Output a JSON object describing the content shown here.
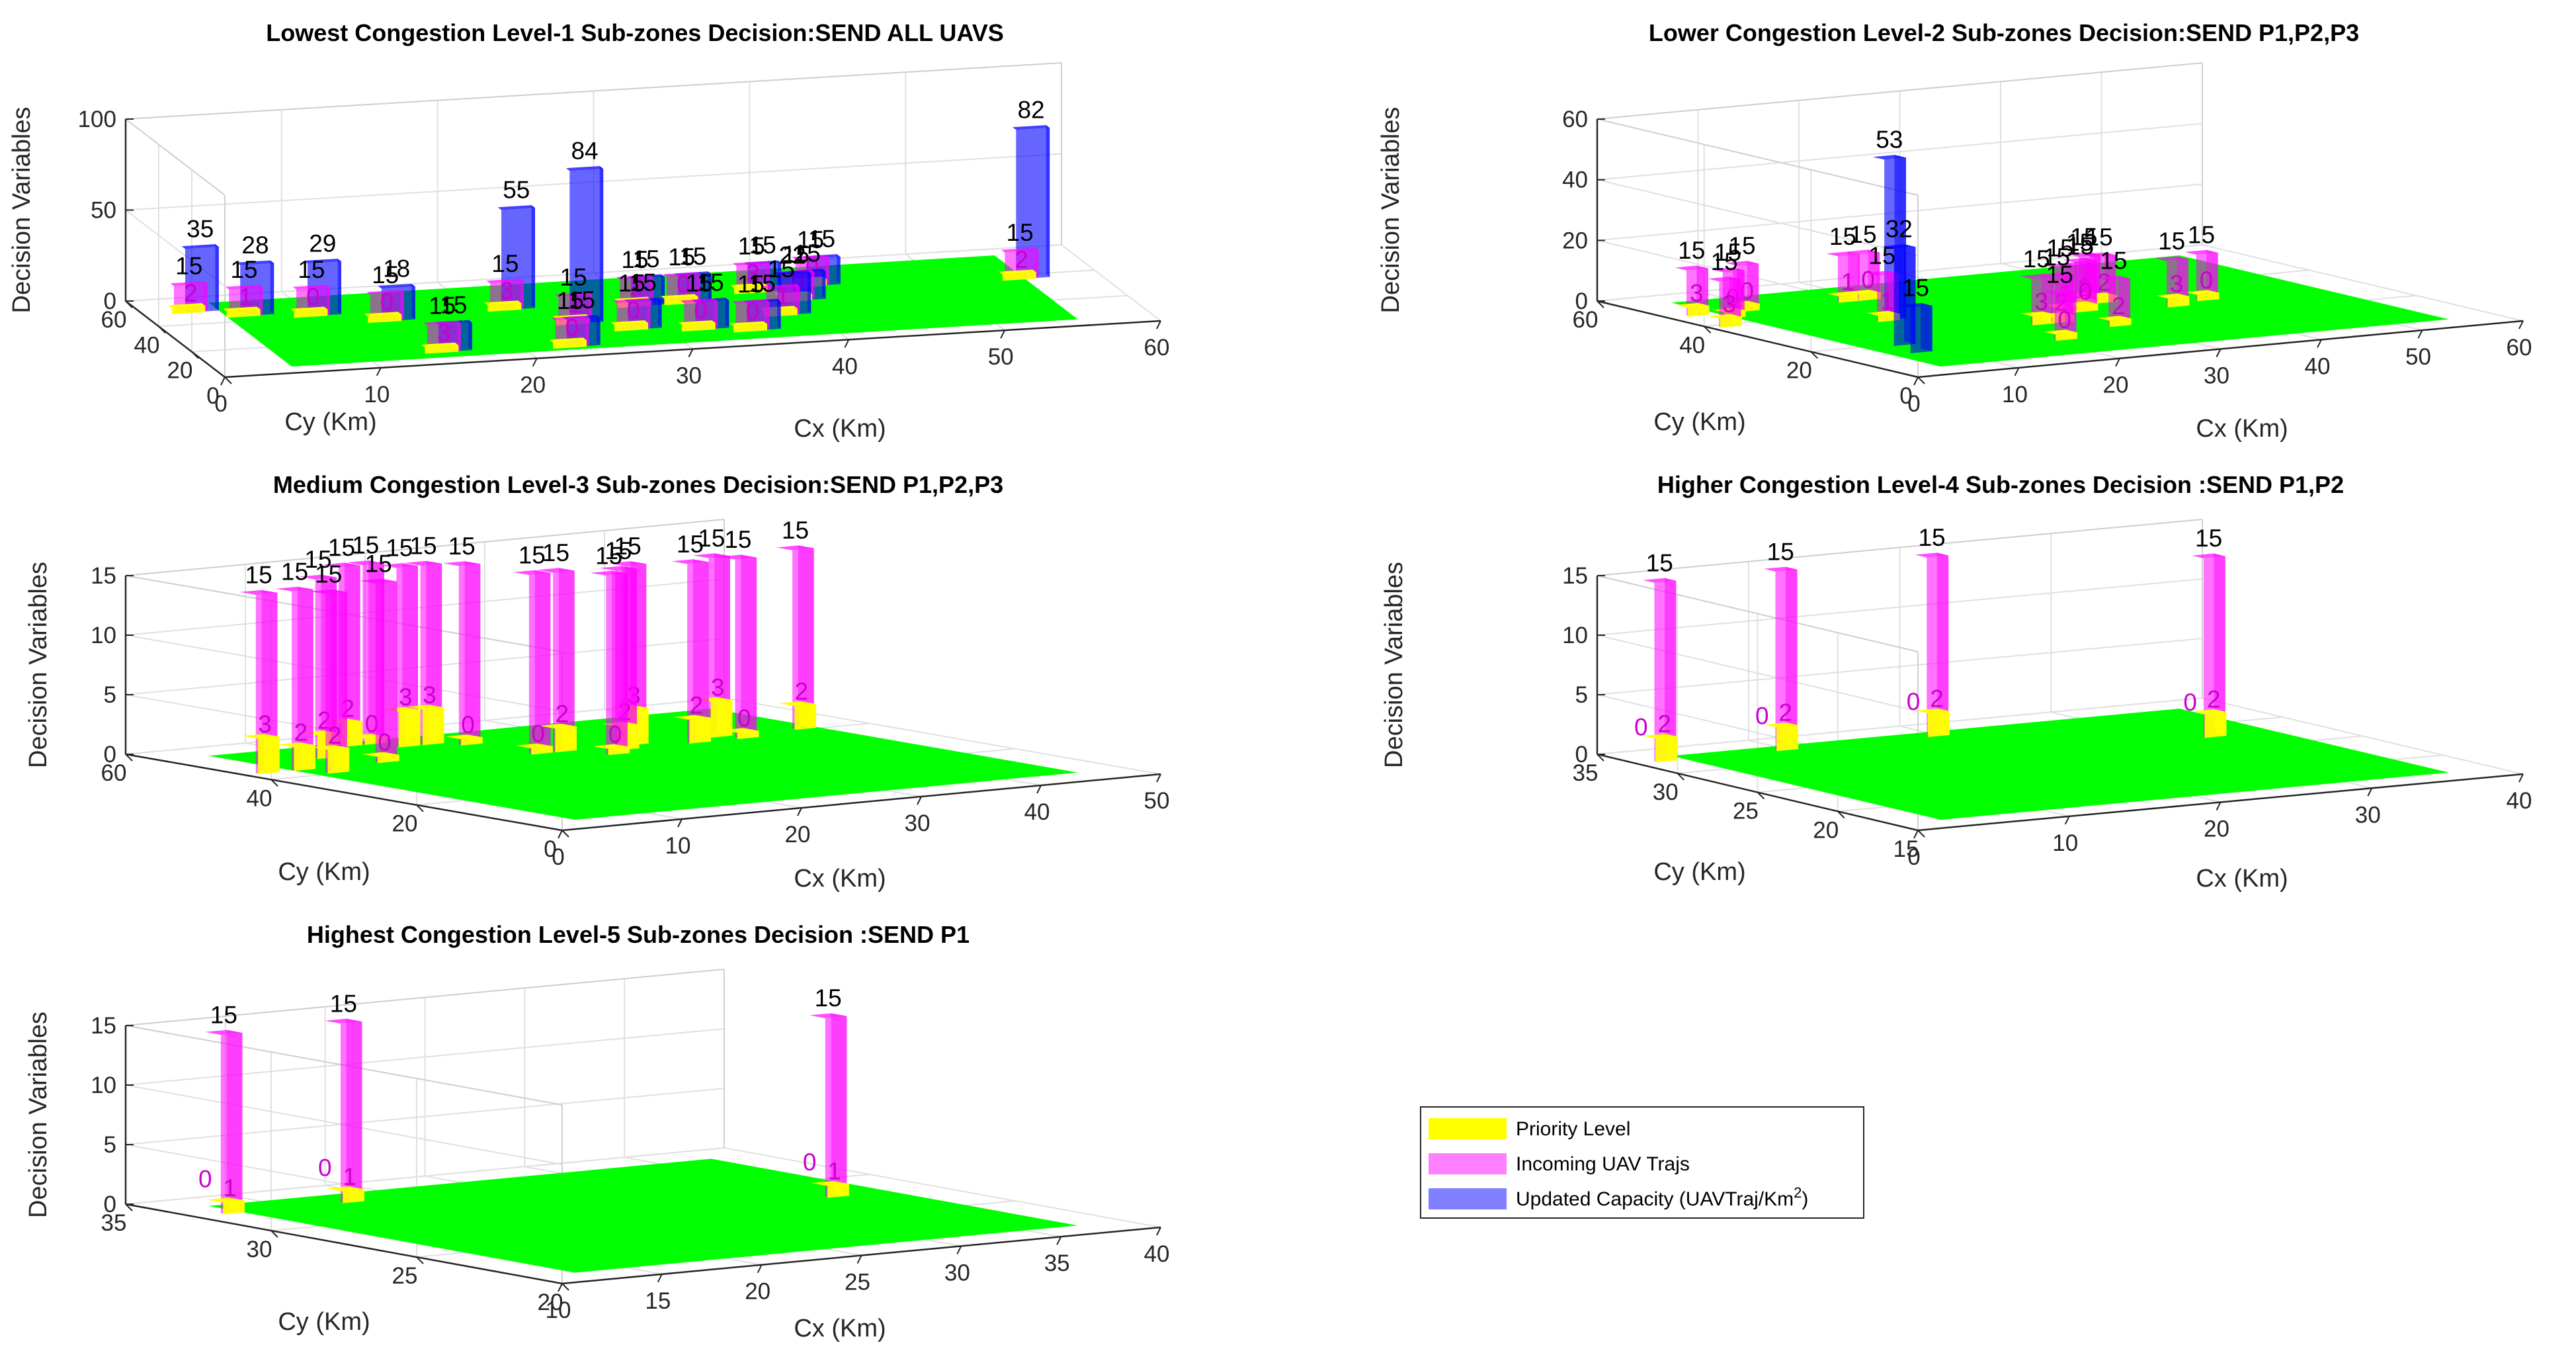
{
  "figure": {
    "legend": {
      "entries": [
        {
          "name": "Priority Level",
          "color": "#ffff00"
        },
        {
          "name": "Incoming UAV Trajs",
          "color": "#ff80ff"
        },
        {
          "name": "Updated Capacity (UAVTraj/Km",
          "superscript": "2",
          "suffix": ")",
          "color": "#7f7fff"
        }
      ]
    },
    "colors": {
      "floor": "#00ff00",
      "priority": "#ffff00",
      "incoming": "#ff00ff",
      "capacity": "#0000ff",
      "grid": "#e0e0e0",
      "axis": "#262626"
    }
  },
  "chart_data": [
    {
      "type": "bar3d",
      "title": "Lowest Congestion Level-1 Sub-zones Decision:SEND ALL UAVS",
      "xlabel": "Cx (Km)",
      "ylabel": "Cy (Km)",
      "zlabel": "Decision Variables",
      "xlim": [
        0,
        60
      ],
      "ylim": [
        0,
        60
      ],
      "zlim": [
        0,
        100
      ],
      "xticks": [
        0,
        10,
        20,
        30,
        40,
        50,
        60
      ],
      "yticks": [
        0,
        20,
        40,
        60
      ],
      "zticks": [
        0,
        50,
        100
      ],
      "bars": [
        {
          "x": 3,
          "y": 50,
          "priority": 2,
          "incoming": 15,
          "capacity": 35
        },
        {
          "x": 6,
          "y": 45,
          "priority": 1,
          "incoming": 15,
          "capacity": 28
        },
        {
          "x": 10,
          "y": 42,
          "priority": 0,
          "incoming": 15,
          "capacity": 29
        },
        {
          "x": 14,
          "y": 35,
          "priority": 0,
          "incoming": 15,
          "capacity": 18
        },
        {
          "x": 22,
          "y": 38,
          "priority": 3,
          "incoming": 15,
          "capacity": 55
        },
        {
          "x": 25,
          "y": 25,
          "priority": 2,
          "incoming": 15,
          "capacity": 84
        },
        {
          "x": 15,
          "y": 10,
          "priority": 3,
          "incoming": 15,
          "capacity": 15
        },
        {
          "x": 30,
          "y": 35,
          "priority": 2,
          "incoming": 15,
          "capacity": 15
        },
        {
          "x": 33,
          "y": 35,
          "priority": 0,
          "incoming": 15,
          "capacity": 15
        },
        {
          "x": 38,
          "y": 40,
          "priority": 3,
          "incoming": 15,
          "capacity": 15
        },
        {
          "x": 42,
          "y": 42,
          "priority": 0,
          "incoming": 15,
          "capacity": 15
        },
        {
          "x": 28,
          "y": 18,
          "priority": 0,
          "incoming": 15,
          "capacity": 15
        },
        {
          "x": 23,
          "y": 8,
          "priority": 0,
          "incoming": 15,
          "capacity": 15
        },
        {
          "x": 38,
          "y": 22,
          "priority": 1,
          "incoming": 15,
          "capacity": 22
        },
        {
          "x": 40,
          "y": 32,
          "priority": 0,
          "incoming": 15,
          "capacity": 15
        },
        {
          "x": 32,
          "y": 15,
          "priority": 0,
          "incoming": 15,
          "capacity": 15
        },
        {
          "x": 35,
          "y": 12,
          "priority": 0,
          "incoming": 15,
          "capacity": 15
        },
        {
          "x": 55,
          "y": 38,
          "priority": 2,
          "incoming": 15,
          "capacity": 82
        }
      ]
    },
    {
      "type": "bar3d",
      "title": "Lower Congestion Level-2 Sub-zones Decision:SEND P1,P2,P3",
      "xlabel": "Cx (Km)",
      "ylabel": "Cy (Km)",
      "zlabel": "Decision Variables",
      "xlim": [
        0,
        60
      ],
      "ylim": [
        0,
        60
      ],
      "zlim": [
        0,
        60
      ],
      "xticks": [
        0,
        10,
        20,
        30,
        40,
        50,
        60
      ],
      "yticks": [
        0,
        20,
        40,
        60
      ],
      "zticks": [
        0,
        20,
        40,
        60
      ],
      "bars": [
        {
          "x": 3,
          "y": 48,
          "priority": 3,
          "incoming": 15
        },
        {
          "x": 5,
          "y": 45,
          "priority": 0,
          "incoming": 15
        },
        {
          "x": 8,
          "y": 48,
          "priority": 0,
          "incoming": 15
        },
        {
          "x": 2,
          "y": 40,
          "priority": 3,
          "incoming": 15
        },
        {
          "x": 18,
          "y": 48,
          "priority": 1,
          "incoming": 15
        },
        {
          "x": 20,
          "y": 48,
          "priority": 0,
          "incoming": 15
        },
        {
          "x": 8,
          "y": 20,
          "capacity": 32
        },
        {
          "x": 15,
          "y": 35,
          "priority": 1,
          "incoming": 15,
          "capacity": 53
        },
        {
          "x": 7,
          "y": 15,
          "capacity": 15
        },
        {
          "x": 25,
          "y": 25,
          "priority": 3,
          "incoming": 15
        },
        {
          "x": 27,
          "y": 25,
          "priority": 2,
          "incoming": 15
        },
        {
          "x": 22,
          "y": 15,
          "priority": 0,
          "incoming": 15
        },
        {
          "x": 30,
          "y": 30,
          "priority": 1,
          "incoming": 15
        },
        {
          "x": 32,
          "y": 30,
          "priority": 0,
          "incoming": 15
        },
        {
          "x": 33,
          "y": 32,
          "priority": 2,
          "incoming": 15
        },
        {
          "x": 35,
          "y": 35,
          "priority": 0,
          "incoming": 15
        },
        {
          "x": 36,
          "y": 34,
          "priority": 2,
          "incoming": 15
        },
        {
          "x": 30,
          "y": 20,
          "priority": 2,
          "incoming": 15
        },
        {
          "x": 40,
          "y": 28,
          "priority": 3,
          "incoming": 15
        },
        {
          "x": 44,
          "y": 30,
          "priority": 0,
          "incoming": 15
        }
      ]
    },
    {
      "type": "bar3d",
      "title": "Medium Congestion Level-3 Sub-zones Decision:SEND P1,P2,P3",
      "xlabel": "Cx (Km)",
      "ylabel": "Cy (Km)",
      "zlabel": "Decision Variables",
      "xlim": [
        0,
        50
      ],
      "ylim": [
        0,
        60
      ],
      "zlim": [
        0,
        15
      ],
      "xticks": [
        0,
        10,
        20,
        30,
        40,
        50
      ],
      "yticks": [
        0,
        20,
        40,
        60
      ],
      "zticks": [
        0,
        5,
        10,
        15
      ],
      "bars": [
        {
          "x": 2,
          "y": 45,
          "priority": 3,
          "incoming": 15
        },
        {
          "x": 5,
          "y": 45,
          "priority": 2,
          "incoming": 15
        },
        {
          "x": 6,
          "y": 42,
          "priority": 2,
          "incoming": 15
        },
        {
          "x": 10,
          "y": 50,
          "priority": 2,
          "incoming": 15
        },
        {
          "x": 12,
          "y": 45,
          "priority": 0,
          "incoming": 15
        },
        {
          "x": 15,
          "y": 55,
          "priority": 2,
          "incoming": 15
        },
        {
          "x": 17,
          "y": 55,
          "priority": 0,
          "incoming": 15
        },
        {
          "x": 18,
          "y": 52,
          "priority": 3,
          "incoming": 15
        },
        {
          "x": 20,
          "y": 52,
          "priority": 3,
          "incoming": 15
        },
        {
          "x": 22,
          "y": 50,
          "priority": 0,
          "incoming": 15
        },
        {
          "x": 23,
          "y": 42,
          "priority": 0,
          "incoming": 15
        },
        {
          "x": 25,
          "y": 42,
          "priority": 2,
          "incoming": 15
        },
        {
          "x": 27,
          "y": 38,
          "priority": 0,
          "incoming": 15
        },
        {
          "x": 29,
          "y": 40,
          "priority": 2,
          "incoming": 15
        },
        {
          "x": 31,
          "y": 42,
          "priority": 3,
          "incoming": 15
        },
        {
          "x": 35,
          "y": 40,
          "priority": 2,
          "incoming": 15
        },
        {
          "x": 38,
          "y": 42,
          "priority": 3,
          "incoming": 15
        },
        {
          "x": 39,
          "y": 40,
          "priority": 0,
          "incoming": 15
        },
        {
          "x": 45,
          "y": 42,
          "priority": 2,
          "incoming": 15
        }
      ]
    },
    {
      "type": "bar3d",
      "title": "Higher Congestion Level-4 Sub-zones Decision :SEND P1,P2",
      "xlabel": "Cx (Km)",
      "ylabel": "Cy (Km)",
      "zlabel": "Decision Variables",
      "xlim": [
        0,
        40
      ],
      "ylim": [
        15,
        35
      ],
      "zlim": [
        0,
        15
      ],
      "xticks": [
        0,
        10,
        20,
        30,
        40
      ],
      "yticks": [
        15,
        20,
        25,
        30,
        35
      ],
      "zticks": [
        0,
        5,
        10,
        15
      ],
      "bars": [
        {
          "x": 2,
          "y": 33,
          "priority": 2,
          "incoming": 15,
          "flag": 0
        },
        {
          "x": 10,
          "y": 33,
          "priority": 2,
          "incoming": 15,
          "flag": 0
        },
        {
          "x": 20,
          "y": 33,
          "priority": 2,
          "incoming": 15,
          "flag": 0
        },
        {
          "x": 33,
          "y": 28,
          "priority": 2,
          "incoming": 15,
          "flag": 0
        }
      ]
    },
    {
      "type": "bar3d",
      "title": "Highest Congestion Level-5 Sub-zones Decision :SEND P1",
      "xlabel": "Cx (Km)",
      "ylabel": "Cy (Km)",
      "zlabel": "Decision Variables",
      "xlim": [
        10,
        40
      ],
      "ylim": [
        20,
        35
      ],
      "zlim": [
        0,
        15
      ],
      "xticks": [
        10,
        15,
        20,
        25,
        30,
        35,
        40
      ],
      "yticks": [
        20,
        25,
        30,
        35
      ],
      "zticks": [
        0,
        5,
        10,
        15
      ],
      "bars": [
        {
          "x": 12,
          "y": 33,
          "priority": 1,
          "incoming": 15,
          "flag": 0
        },
        {
          "x": 18,
          "y": 33,
          "priority": 1,
          "incoming": 15,
          "flag": 0
        },
        {
          "x": 35,
          "y": 28,
          "priority": 1,
          "incoming": 15,
          "flag": 0
        }
      ]
    }
  ]
}
